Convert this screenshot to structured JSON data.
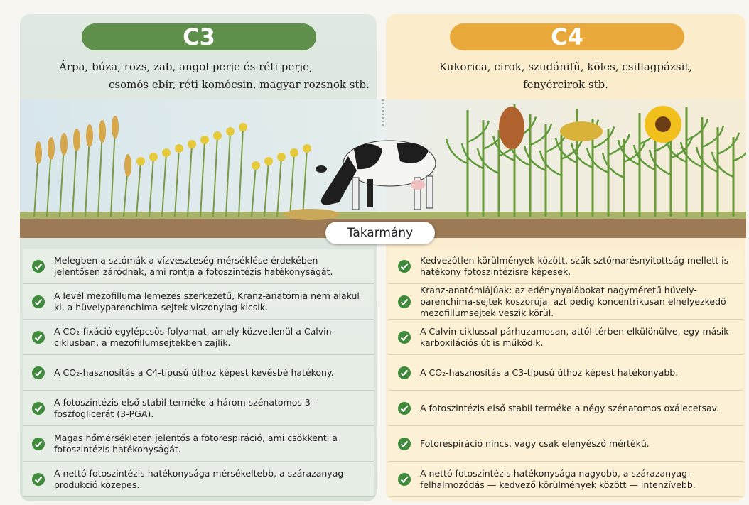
{
  "left": {
    "header": "C3",
    "plants": [
      "Árpa, búza, rozs, zab, angol perje és réti perje,",
      "csomós ebír, réti komócsin, magyar rozsnok stb."
    ],
    "bullets": [
      "Melegben a sztómák a vízveszteség mérséklése érdekében jelentősen záródnak, ami rontja a fotoszintézis hatékonyságát.",
      "A levél mezofilluma lemezes szerkezetű, Kranz-anatómia nem alakul ki, a hüvelyparenchima-sejtek viszonylag kicsik.",
      "A CO₂-fixáció egylépcsős folyamat, amely közvetlenül a Calvin-ciklusban, a mezofillumsejtekben zajlik.",
      "A CO₂-hasznosítás a C4-típusú úthoz képest kevésbé hatékony.",
      "A fotoszintézis első stabil terméke a három szénatomos 3-foszfoglicerát (3-PGA).",
      "Magas hőmérsékleten jelentős a fotorespiráció, ami csökkenti a fotoszintézis hatékonyságát.",
      "A nettó fotoszintézis hatékonysága mérsékeltebb, a szárazanyag-produkció közepes."
    ]
  },
  "right": {
    "header": "C4",
    "plants": [
      "Kukorica, cirok, szudánifű, köles, csillagpázsit,",
      "fenyércirok stb."
    ],
    "bullets": [
      "Kedvezőtlen körülmények között, szűk sztómarésnyitottság mellett is hatékony fotoszintézisre képesek.",
      "Kranz-anatómiájúak: az edénynyalábokat nagyméretű hüvely-parenchima-sejtek koszorúja, azt pedig koncentrikusan elhelyezkedő mezofillumsejtek veszik körül.",
      "A Calvin-ciklussal párhuzamosan, attól térben elkülönülve, egy másik karboxilációs út is működik.",
      "A CO₂-hasznosítás a C3-típusú úthoz képest hatékonyabb.",
      "A fotoszintézis első stabil terméke a négy szénatomos oxálecetsav.",
      "Fotorespiráció nincs, vagy csak elenyésző mértékű.",
      "A nettó fotoszintézis hatékonysága nagyobb, a szárazanyag-felhalmozódás — kedvező körülmények között — intenzívebb."
    ]
  },
  "center_label": "Takarmány"
}
